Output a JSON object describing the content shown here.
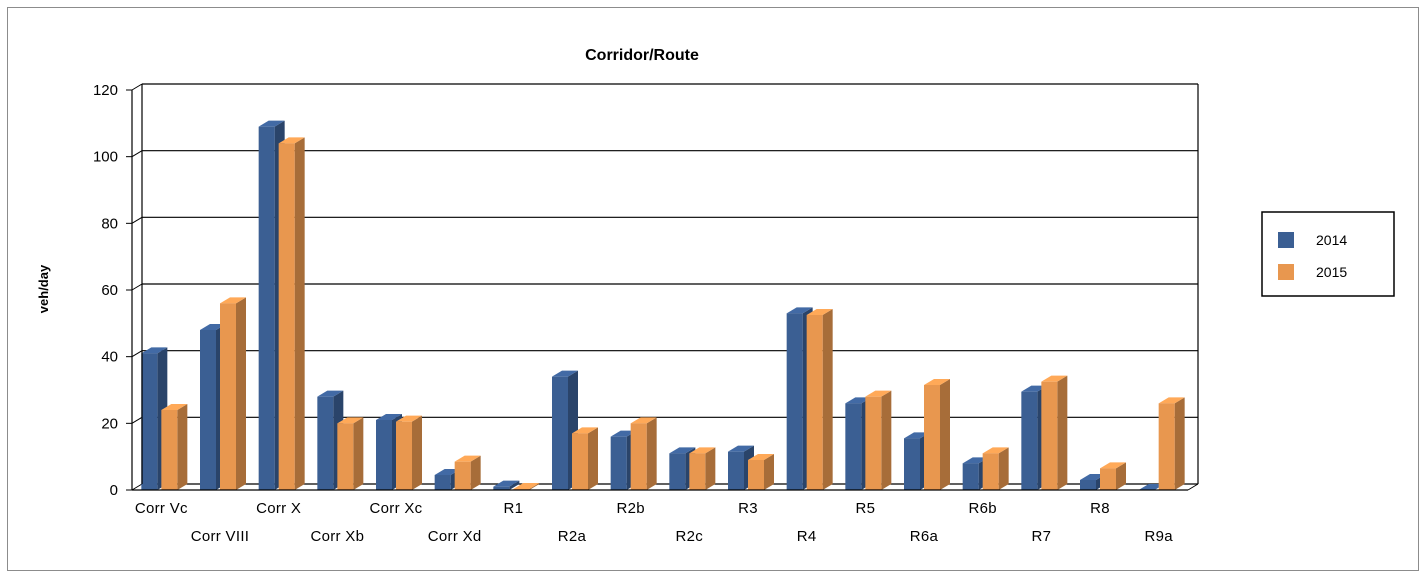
{
  "chart_data": {
    "type": "bar",
    "title": "Corridor/Route",
    "xlabel": "",
    "ylabel": "veh/day",
    "ylim": [
      0,
      120
    ],
    "yticks": [
      0,
      20,
      40,
      60,
      80,
      100,
      120
    ],
    "grid": true,
    "legend_position": "right",
    "categories": [
      "Corr Vc",
      "Corr VIII",
      "Corr X",
      "Corr Xb",
      "Corr Xc",
      "Corr Xd",
      "R1",
      "R2a",
      "R2b",
      "R2c",
      "R3",
      "R4",
      "R5",
      "R6a",
      "R6b",
      "R7",
      "R8",
      "R9a"
    ],
    "series": [
      {
        "name": "2014",
        "color": "#3b5f93",
        "values": [
          41,
          48,
          109,
          28,
          21,
          4.5,
          1,
          34,
          16,
          11,
          11.5,
          53,
          26,
          15.5,
          8,
          29.5,
          3,
          0
        ]
      },
      {
        "name": "2015",
        "color": "#e8974f",
        "values": [
          24,
          56,
          104,
          20,
          20.5,
          8.5,
          0.3,
          17,
          20,
          11,
          9,
          52.5,
          28,
          31.5,
          11,
          32.5,
          6.5,
          26
        ]
      }
    ]
  }
}
